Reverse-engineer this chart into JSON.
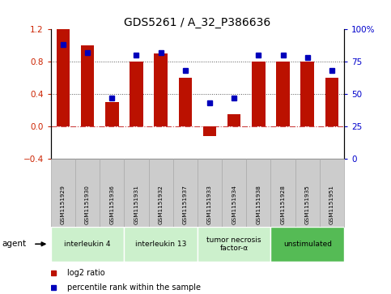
{
  "title": "GDS5261 / A_32_P386636",
  "samples": [
    "GSM1151929",
    "GSM1151930",
    "GSM1151936",
    "GSM1151931",
    "GSM1151932",
    "GSM1151937",
    "GSM1151933",
    "GSM1151934",
    "GSM1151938",
    "GSM1151928",
    "GSM1151935",
    "GSM1151951"
  ],
  "log2_ratio": [
    1.2,
    1.0,
    0.3,
    0.8,
    0.9,
    0.6,
    -0.12,
    0.15,
    0.8,
    0.8,
    0.8,
    0.6
  ],
  "percentile_100": [
    88,
    82,
    47,
    80,
    82,
    68,
    43,
    47,
    80,
    80,
    78,
    68
  ],
  "ylim_left": [
    -0.4,
    1.2
  ],
  "ylim_right": [
    0,
    100
  ],
  "yticks_left": [
    -0.4,
    0,
    0.4,
    0.8,
    1.2
  ],
  "yticks_right": [
    0,
    25,
    50,
    75,
    100
  ],
  "hlines_dotted": [
    0.4,
    0.8
  ],
  "zero_line": 0.0,
  "groups": [
    {
      "label": "interleukin 4",
      "start": 0,
      "end": 3,
      "color": "#ccf0cc"
    },
    {
      "label": "interleukin 13",
      "start": 3,
      "end": 6,
      "color": "#ccf0cc"
    },
    {
      "label": "tumor necrosis\nfactor-α",
      "start": 6,
      "end": 9,
      "color": "#ccf0cc"
    },
    {
      "label": "unstimulated",
      "start": 9,
      "end": 12,
      "color": "#55bb55"
    }
  ],
  "bar_color": "#bb1100",
  "dot_color": "#0000bb",
  "zero_line_color": "#cc4444",
  "dot_color_right": "#0000cc",
  "bg_color": "#ffffff",
  "title_fontsize": 10,
  "tick_color_left": "#cc2200",
  "tick_color_right": "#0000cc",
  "sample_box_color": "#cccccc",
  "sample_box_edge": "#aaaaaa"
}
